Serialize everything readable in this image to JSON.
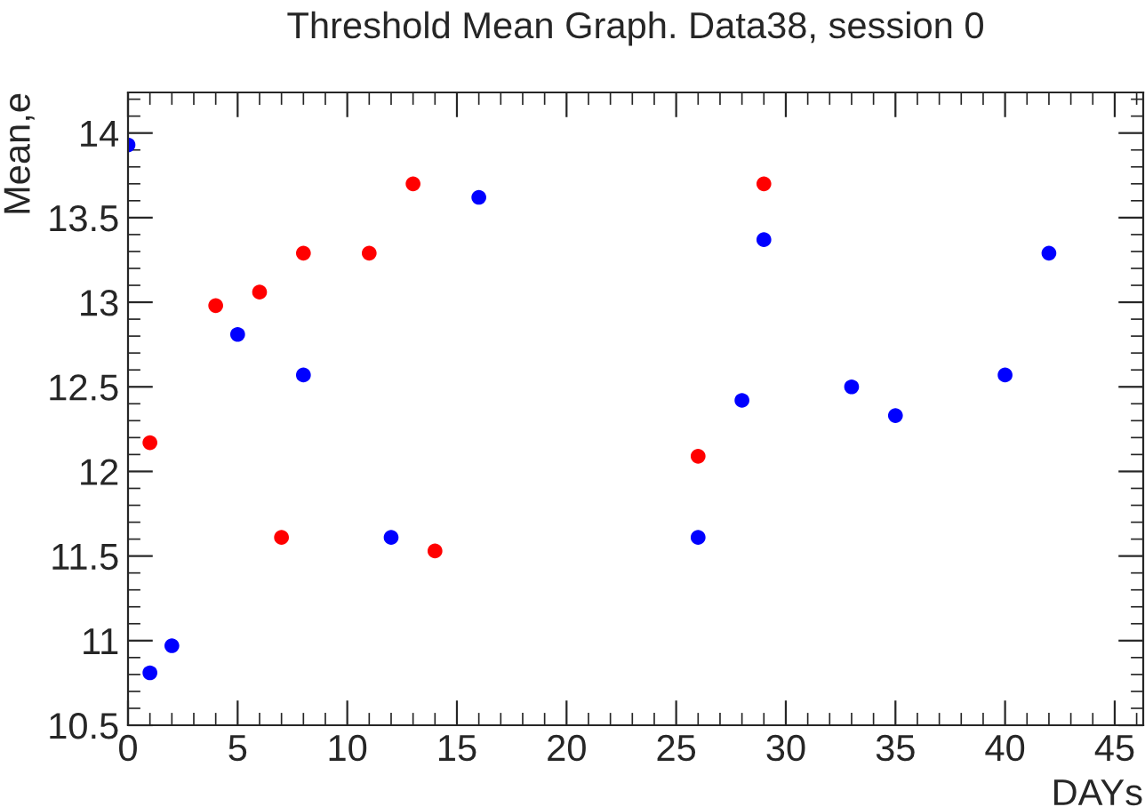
{
  "chart_data": {
    "type": "scatter",
    "title": "Threshold Mean Graph. Data38, session 0",
    "xlabel": "DAYs",
    "ylabel": "Mean,e",
    "series": [
      {
        "color": "#0000ff",
        "x": [
          0,
          1,
          2,
          5,
          8,
          12,
          16,
          26,
          28,
          29,
          33,
          35,
          40,
          42
        ],
        "values": [
          13.93,
          10.81,
          10.97,
          12.81,
          12.57,
          11.61,
          13.62,
          11.61,
          12.42,
          13.37,
          12.5,
          12.33,
          12.57,
          13.29
        ]
      },
      {
        "color": "#ff0000",
        "x": [
          1,
          4,
          6,
          7,
          8,
          11,
          13,
          14,
          26,
          29
        ],
        "values": [
          12.17,
          12.98,
          13.06,
          11.61,
          13.29,
          13.29,
          13.7,
          11.53,
          12.09,
          13.7
        ]
      }
    ],
    "xlim": [
      0,
      46.3
    ],
    "xticks": [
      0,
      5,
      10,
      15,
      20,
      25,
      30,
      35,
      40,
      45
    ],
    "ylim": [
      10.5,
      14.24
    ],
    "yticks": [
      10.5,
      11,
      11.5,
      12,
      12.5,
      13,
      13.5,
      14
    ],
    "marker": "circle",
    "grid": false,
    "legend": false
  }
}
